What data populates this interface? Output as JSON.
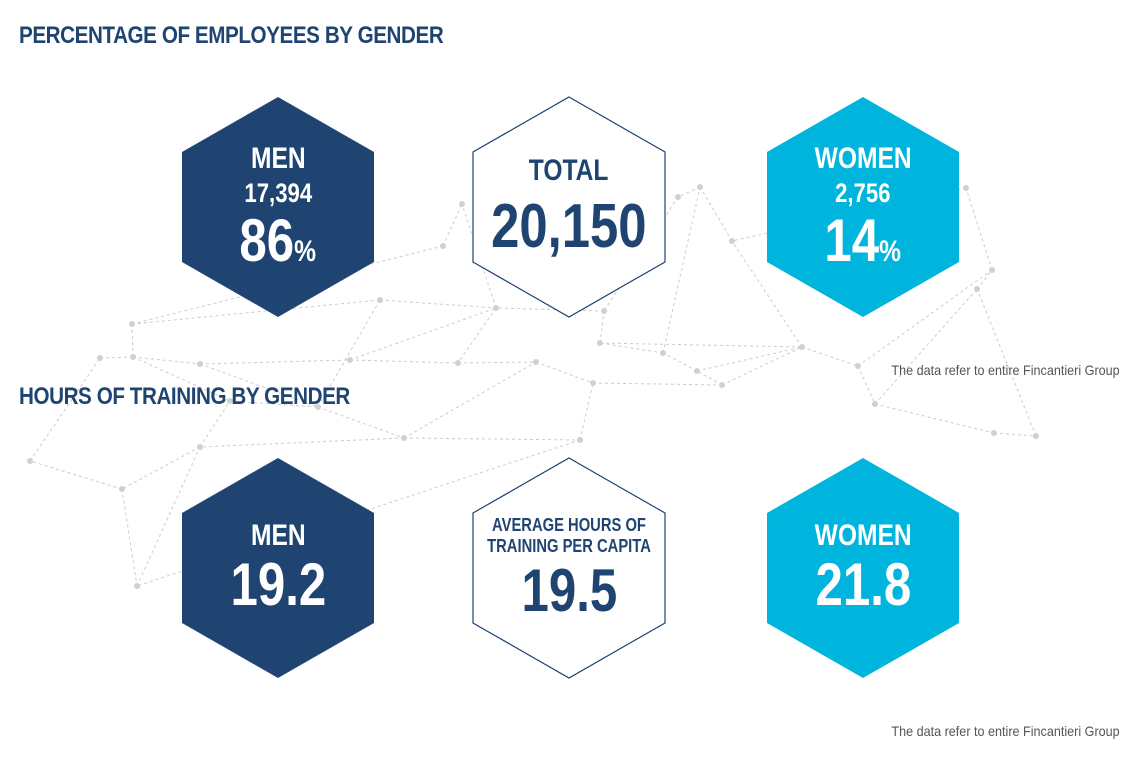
{
  "employees": {
    "title": "PERCENTAGE OF EMPLOYEES BY GENDER",
    "men": {
      "label": "MEN",
      "count": "17,394",
      "percent": "86",
      "unit": "%"
    },
    "total": {
      "label": "TOTAL",
      "value": "20,150"
    },
    "women": {
      "label": "WOMEN",
      "count": "2,756",
      "percent": "14",
      "unit": "%"
    },
    "note": "The data refer to entire Fincantieri Group"
  },
  "training": {
    "title": "HOURS OF TRAINING BY GENDER",
    "men": {
      "label": "MEN",
      "value": "19.2"
    },
    "average": {
      "label": "AVERAGE HOURS OF TRAINING PER CAPITA",
      "value": "19.5"
    },
    "women": {
      "label": "WOMEN",
      "value": "21.8"
    },
    "note": "The data refer to entire Fincantieri Group"
  },
  "colors": {
    "dark_blue": "#1f4472",
    "cyan": "#00b5dd",
    "network": "#cccccc"
  }
}
